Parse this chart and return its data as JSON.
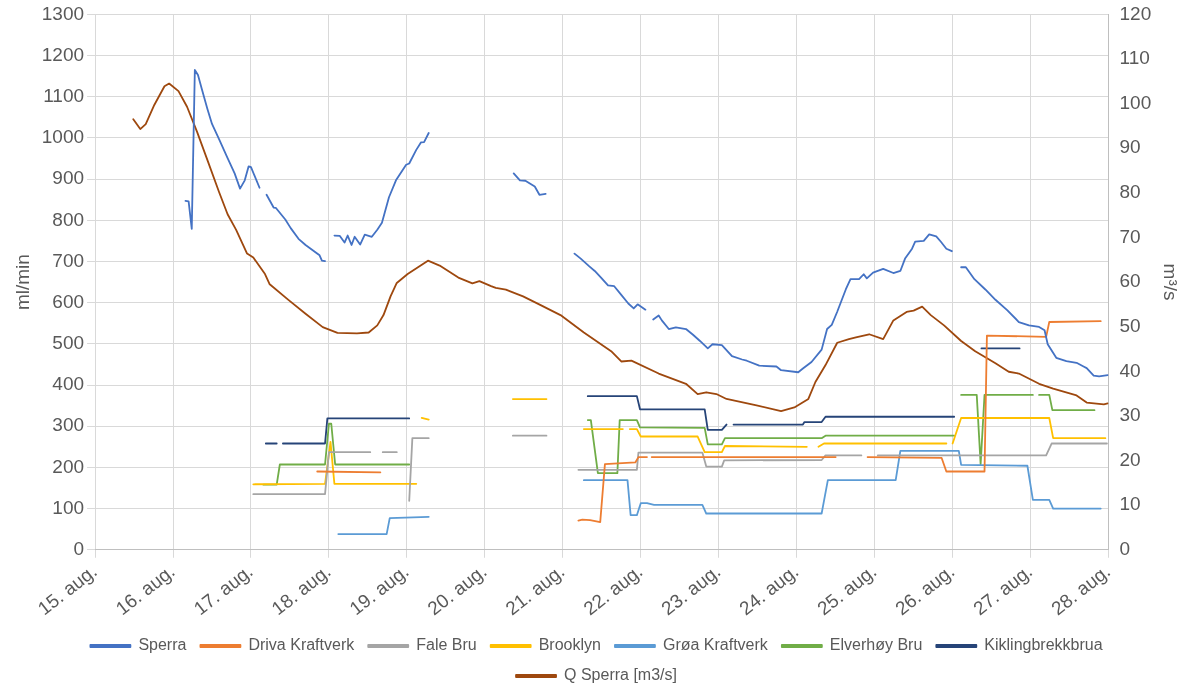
{
  "chart_data": {
    "type": "line",
    "ylabel": "ml/min",
    "y2label": "m³/s",
    "xlim": [
      "--08-15",
      "--08-28"
    ],
    "xticks": [
      {
        "value": "--08-15",
        "label": "15. aug."
      },
      {
        "value": "--08-16",
        "label": "16. aug."
      },
      {
        "value": "--08-17",
        "label": "17. aug."
      },
      {
        "value": "--08-18",
        "label": "18. aug."
      },
      {
        "value": "--08-19",
        "label": "19. aug."
      },
      {
        "value": "--08-20",
        "label": "20. aug."
      },
      {
        "value": "--08-21",
        "label": "21. aug."
      },
      {
        "value": "--08-22",
        "label": "22. aug."
      },
      {
        "value": "--08-23",
        "label": "23. aug."
      },
      {
        "value": "--08-24",
        "label": "24. aug."
      },
      {
        "value": "--08-25",
        "label": "25. aug."
      },
      {
        "value": "--08-26",
        "label": "26. aug."
      },
      {
        "value": "--08-27",
        "label": "27. aug."
      },
      {
        "value": "--08-28",
        "label": "28. aug."
      }
    ],
    "ylim": [
      0,
      1300
    ],
    "yticks": [
      0,
      100,
      200,
      300,
      400,
      500,
      600,
      700,
      800,
      900,
      1000,
      1100,
      1200,
      1300
    ],
    "y2lim": [
      0,
      120
    ],
    "y2ticks": [
      0,
      10,
      20,
      30,
      40,
      50,
      60,
      70,
      80,
      90,
      100,
      110,
      120
    ],
    "grid": true,
    "legend": "bottom",
    "marker": "none",
    "line_style": "solid",
    "series": [
      {
        "name": "Sperra",
        "color": "#4472c4",
        "x": [
          "--08-16T03:50",
          "--08-16T04:48",
          "--08-16T05:46",
          "--08-16T06:43",
          "--08-16T07:41",
          "--08-16T08:53",
          "--08-16T10:34",
          "--08-16T12:00",
          "--08-16T14:10",
          "--08-16T16:48",
          "--08-16T18:58",
          "--08-16T20:38",
          "--08-16T22:05",
          "--08-16T23:17",
          "--08-17T00:00",
          "--08-17T02:38",
          "--08-17T03:36",
          "--08-17T04:48",
          "--08-17T06:58",
          "--08-17T07:41",
          "--08-17T10:34",
          "--08-17T12:14",
          "--08-17T14:38",
          "--08-17T16:48",
          "--08-17T21:07",
          "--08-17T21:50",
          "--08-17T22:48",
          "--08-18T00:00",
          "--08-18T01:41",
          "--08-18T03:22",
          "--08-18T04:48",
          "--08-18T05:46",
          "--08-18T06:58",
          "--08-18T07:55",
          "--08-18T09:36",
          "--08-18T11:02",
          "--08-18T13:12",
          "--08-18T14:53",
          "--08-18T16:19",
          "--08-18T18:29",
          "--08-18T20:38",
          "--08-18T23:46",
          "--08-19T00:43",
          "--08-19T02:53",
          "--08-19T04:19",
          "--08-19T05:17",
          "--08-19T06:43",
          "--08-19T19:12",
          "--08-20T08:53",
          "--08-20T10:48",
          "--08-20T12:29",
          "--08-20T15:22",
          "--08-20T16:48",
          "--08-20T18:43",
          "--08-21T00:00",
          "--08-21T03:36",
          "--08-21T05:31",
          "--08-21T08:10",
          "--08-21T09:50",
          "--08-21T11:46",
          "--08-21T13:55",
          "--08-21T15:50",
          "--08-21T18:00",
          "--08-21T20:10",
          "--08-21T21:50",
          "--08-21T23:02",
          "--08-22T01:26",
          "--08-22T02:24",
          "--08-22T03:50",
          "--08-22T05:31",
          "--08-22T06:29",
          "--08-22T08:38",
          "--08-22T10:48",
          "--08-22T13:55",
          "--08-22T16:05",
          "--08-22T18:14",
          "--08-22T20:38",
          "--08-22T22:05",
          "--08-23T00:58",
          "--08-23T04:05",
          "--08-23T07:12",
          "--08-23T08:38",
          "--08-23T12:29",
          "--08-23T17:46",
          "--08-23T19:12",
          "--08-24T00:29",
          "--08-24T01:55",
          "--08-24T04:34",
          "--08-24T07:41",
          "--08-24T09:22",
          "--08-24T10:48",
          "--08-24T12:29",
          "--08-24T15:07",
          "--08-24T16:34",
          "--08-24T19:12",
          "--08-24T20:38",
          "--08-24T21:36",
          "--08-24T23:31",
          "--08-25T02:38",
          "--08-25T05:46",
          "--08-25T07:55",
          "--08-25T09:22",
          "--08-25T11:31",
          "--08-25T12:29",
          "--08-25T15:07",
          "--08-25T16:48",
          "--08-25T18:58",
          "--08-25T20:24",
          "--08-25T22:05",
          "--08-25T23:46",
          "--08-26T01:12",
          "--08-26T02:38",
          "--08-26T04:05",
          "--08-26T06:43",
          "--08-26T10:05",
          "--08-26T13:12",
          "--08-26T16:48",
          "--08-26T20:24",
          "--08-26T23:31",
          "--08-27T02:38",
          "--08-27T04:19",
          "--08-27T05:17",
          "--08-27T07:55",
          "--08-27T11:02",
          "--08-27T14:10",
          "--08-27T16:19",
          "--08-27T17:17",
          "--08-27T19:26",
          "--08-27T21:07",
          "--08-27T23:46"
        ],
        "values": [
          847,
          846,
          779,
          1165,
          1153,
          1118,
          1071,
          1034,
          997,
          951,
          914,
          877,
          897,
          931,
          929,
          879,
          null,
          862,
          831,
          830,
          802,
          781,
          755,
          740,
          715,
          702,
          701,
          null,
          763,
          762,
          746,
          763,
          740,
          760,
          741,
          765,
          760,
          777,
          794,
          856,
          897,
          935,
          938,
          971,
          989,
          990,
          1012,
          null,
          914,
          897,
          896,
          882,
          862,
          864,
          null,
          719,
          707,
          688,
          677,
          661,
          642,
          640,
          619,
          598,
          586,
          596,
          583,
          null,
          559,
          569,
          557,
          536,
          540,
          536,
          522,
          507,
          489,
          499,
          497,
          470,
          462,
          459,
          447,
          445,
          436,
          431,
          440,
          456,
          486,
          536,
          546,
          578,
          632,
          657,
          657,
          669,
          659,
          673,
          682,
          672,
          677,
          707,
          731,
          748,
          750,
          766,
          761,
          748,
          731,
          725,
          null,
          686,
          686,
          657,
          632,
          607,
          582,
          553,
          545,
          541,
          533,
          499,
          466,
          458,
          454,
          445,
          441,
          423,
          421,
          424
        ]
      },
      {
        "name": "Driva Kraftverk",
        "color": "#ed7d31",
        "x": [
          "--08-17T20:24",
          "--08-18T15:50",
          "--08-19T12:00",
          "--08-21T04:48",
          "--08-21T06:00",
          "--08-21T08:24",
          "--08-21T11:31",
          "--08-21T12:58",
          "--08-21T22:19",
          "--08-21T23:17",
          "--08-22T01:55",
          "--08-22T02:38",
          "--08-22T03:22",
          "--08-24T12:00",
          "--08-24T16:48",
          "--08-24T21:50",
          "--08-25T20:38",
          "--08-25T22:05",
          "--08-25T23:31",
          "--08-26T09:50",
          "--08-26T10:34",
          "--08-27T04:48",
          "--08-27T05:46",
          "--08-27T21:36"
        ],
        "values": [
          190,
          188,
          null,
          71,
          73,
          72,
          67,
          208,
          212,
          225,
          225,
          null,
          225,
          225,
          null,
          225,
          223,
          190,
          190,
          190,
          520,
          517,
          553,
          555
        ]
      },
      {
        "name": "Fale Bru",
        "color": "#a5a5a5",
        "x": [
          "--08-17T00:43",
          "--08-17T22:48",
          "--08-18T00:00",
          "--08-18T12:43",
          "--08-18T14:24",
          "--08-18T16:34",
          "--08-18T20:53",
          "--08-18T22:48",
          "--08-19T00:43",
          "--08-19T01:41",
          "--08-19T06:43",
          "--08-19T19:12",
          "--08-20T08:38",
          "--08-20T18:58",
          "--08-21T00:00",
          "--08-21T04:48",
          "--08-21T22:48",
          "--08-21T23:17",
          "--08-22T18:58",
          "--08-22T20:10",
          "--08-23T00:58",
          "--08-23T01:41",
          "--08-24T07:41",
          "--08-24T08:53",
          "--08-24T19:55",
          "--08-24T21:36",
          "--08-25T00:58",
          "--08-27T04:48",
          "--08-27T06:29",
          "--08-27T23:31"
        ],
        "values": [
          135,
          135,
          237,
          237,
          null,
          237,
          237,
          null,
          119,
          271,
          271,
          null,
          277,
          277,
          null,
          194,
          194,
          236,
          236,
          202,
          202,
          217,
          218,
          229,
          229,
          null,
          229,
          229,
          258,
          258
        ]
      },
      {
        "name": "Brooklyn",
        "color": "#ffc000",
        "x": [
          "--08-17T00:43",
          "--08-17T22:48",
          "--08-18T00:29",
          "--08-18T01:41",
          "--08-19T02:53",
          "--08-19T03:36",
          "--08-19T04:34",
          "--08-19T06:43",
          "--08-19T19:12",
          "--08-20T08:38",
          "--08-20T18:58",
          "--08-21T00:00",
          "--08-21T06:29",
          "--08-21T18:29",
          "--08-21T19:12",
          "--08-21T20:38",
          "--08-21T22:48",
          "--08-22T00:00",
          "--08-22T17:31",
          "--08-22T19:41",
          "--08-23T00:58",
          "--08-23T01:55",
          "--08-24T03:07",
          "--08-24T04:48",
          "--08-24T06:43",
          "--08-24T08:24",
          "--08-25T22:05",
          "--08-25T23:02",
          "--08-26T00:00",
          "--08-26T02:38",
          "--08-27T05:46",
          "--08-27T06:58",
          "--08-27T23:02"
        ],
        "values": [
          159,
          160,
          262,
          160,
          160,
          null,
          320,
          316,
          null,
          366,
          366,
          null,
          293,
          293,
          null,
          293,
          293,
          275,
          275,
          237,
          237,
          252,
          250,
          null,
          250,
          258,
          258,
          null,
          258,
          320,
          320,
          271,
          271
        ]
      },
      {
        "name": "Grøa Kraftverk",
        "color": "#5b9bd5",
        "x": [
          "--08-18T02:53",
          "--08-18T17:46",
          "--08-18T18:43",
          "--08-19T06:43",
          "--08-19T19:12",
          "--08-21T06:29",
          "--08-21T19:55",
          "--08-21T20:53",
          "--08-21T22:48",
          "--08-22T00:00",
          "--08-22T01:55",
          "--08-22T04:05",
          "--08-22T18:58",
          "--08-22T20:10",
          "--08-24T07:41",
          "--08-24T09:36",
          "--08-25T06:29",
          "--08-25T07:55",
          "--08-26T01:55",
          "--08-26T02:38",
          "--08-26T23:02",
          "--08-27T00:43",
          "--08-27T05:46",
          "--08-27T06:58",
          "--08-27T21:36"
        ],
        "values": [
          38,
          38,
          77,
          80,
          null,
          169,
          169,
          84,
          84,
          113,
          113,
          109,
          109,
          88,
          88,
          169,
          169,
          240,
          240,
          206,
          204,
          121,
          121,
          100,
          100
        ]
      },
      {
        "name": "Elverhøy Bru",
        "color": "#70ad47",
        "x": [
          "--08-17T03:50",
          "--08-17T07:55",
          "--08-17T08:53",
          "--08-17T22:48",
          "--08-18T00:00",
          "--08-18T00:43",
          "--08-18T01:55",
          "--08-19T00:43",
          "--08-19T19:12",
          "--08-21T07:41",
          "--08-21T08:38",
          "--08-21T10:48",
          "--08-21T16:48",
          "--08-21T17:31",
          "--08-21T22:48",
          "--08-21T23:46",
          "--08-22T19:41",
          "--08-22T20:38",
          "--08-23T00:58",
          "--08-23T01:55",
          "--08-24T07:41",
          "--08-24T08:53",
          "--08-26T00:29",
          "--08-26T01:26",
          "--08-26T02:38",
          "--08-26T07:26",
          "--08-26T08:38",
          "--08-26T09:50",
          "--08-27T00:43",
          "--08-27T01:41",
          "--08-27T02:38",
          "--08-27T05:46",
          "--08-27T06:43",
          "--08-27T19:41"
        ],
        "values": [
          158,
          158,
          207,
          207,
          306,
          306,
          207,
          207,
          null,
          315,
          315,
          186,
          186,
          315,
          315,
          297,
          296,
          256,
          256,
          271,
          271,
          277,
          277,
          null,
          376,
          376,
          208,
          376,
          376,
          null,
          376,
          376,
          339,
          339
        ]
      },
      {
        "name": "Kiklingbrekkbrua",
        "color": "#264478",
        "x": [
          "--08-17T04:34",
          "--08-17T07:55",
          "--08-17T08:53",
          "--08-17T09:50",
          "--08-17T22:48",
          "--08-17T23:31",
          "--08-19T00:43",
          "--08-19T19:12",
          "--08-21T07:41",
          "--08-21T22:48",
          "--08-21T23:46",
          "--08-22T19:41",
          "--08-22T20:38",
          "--08-23T00:58",
          "--08-23T02:24",
          "--08-23T03:36",
          "--08-23T04:34",
          "--08-24T01:55",
          "--08-24T02:24",
          "--08-24T07:41",
          "--08-24T08:53",
          "--08-26T00:29",
          "--08-26T04:48",
          "--08-26T08:53",
          "--08-26T20:38"
        ],
        "values": [
          258,
          258,
          null,
          258,
          258,
          319,
          319,
          null,
          373,
          373,
          341,
          341,
          291,
          291,
          304,
          null,
          304,
          304,
          310,
          310,
          323,
          323,
          null,
          489,
          489
        ]
      },
      {
        "name": "Q Sperra [m3/s]",
        "color": "#9e480e",
        "axis": "y2",
        "x": [
          "--08-15T11:46",
          "--08-15T13:55",
          "--08-15T15:36",
          "--08-15T18:14",
          "--08-15T21:22",
          "--08-15T22:48",
          "--08-16T01:41",
          "--08-16T04:19",
          "--08-16T07:26",
          "--08-16T10:34",
          "--08-16T14:10",
          "--08-16T16:48",
          "--08-16T19:26",
          "--08-16T22:48",
          "--08-17T00:43",
          "--08-17T04:19",
          "--08-17T05:46",
          "--08-17T11:31",
          "--08-17T16:48",
          "--08-17T22:05",
          "--08-18T02:38",
          "--08-18T08:38",
          "--08-18T12:14",
          "--08-18T14:53",
          "--08-18T16:48",
          "--08-18T18:58",
          "--08-18T20:53",
          "--08-19T00:14",
          "--08-19T06:29",
          "--08-19T10:05",
          "--08-19T15:50",
          "--08-19T20:10",
          "--08-19T22:19",
          "--08-20T01:55",
          "--08-20T03:22",
          "--08-20T06:29",
          "--08-20T11:46",
          "--08-20T17:02",
          "--08-20T23:17",
          "--08-21T06:29",
          "--08-21T14:53",
          "--08-21T18:00",
          "--08-21T21:07",
          "--08-22T05:31",
          "--08-22T13:55",
          "--08-22T17:31",
          "--08-22T20:10",
          "--08-22T23:17",
          "--08-23T02:24",
          "--08-23T12:00",
          "--08-23T19:12",
          "--08-23T23:17",
          "--08-24T03:36",
          "--08-24T05:46",
          "--08-24T08:53",
          "--08-24T12:29",
          "--08-24T16:05",
          "--08-24T18:14",
          "--08-24T22:19",
          "--08-25T02:38",
          "--08-25T05:46",
          "--08-25T09:50",
          "--08-25T12:00",
          "--08-25T14:38",
          "--08-25T17:17",
          "--08-25T21:22",
          "--08-26T02:38",
          "--08-26T06:58",
          "--08-26T13:12",
          "--08-26T17:17",
          "--08-26T20:24",
          "--08-27T02:38",
          "--08-27T06:58",
          "--08-27T14:10",
          "--08-27T17:17",
          "--08-27T22:34",
          "--08-27T23:46"
        ],
        "values": [
          96.5,
          94.3,
          95.4,
          99.7,
          103.9,
          104.5,
          102.8,
          99.3,
          93.6,
          87.4,
          80.2,
          75.2,
          71.7,
          66.4,
          65.5,
          61.8,
          59.5,
          56.0,
          52.9,
          49.9,
          48.6,
          48.5,
          48.7,
          50.3,
          52.6,
          56.8,
          59.8,
          61.8,
          64.8,
          63.7,
          61.0,
          59.7,
          60.2,
          59.1,
          58.7,
          58.3,
          56.8,
          54.9,
          52.6,
          48.7,
          44.5,
          42.2,
          42.4,
          39.5,
          37.2,
          34.9,
          35.3,
          34.9,
          33.8,
          32.3,
          31.1,
          31.9,
          33.8,
          37.6,
          41.4,
          46.4,
          47.2,
          47.6,
          48.3,
          47.2,
          51.4,
          53.3,
          53.6,
          54.5,
          52.6,
          50.3,
          46.8,
          44.5,
          41.8,
          39.9,
          39.5,
          37.2,
          36.1,
          34.6,
          33.0,
          32.6,
          32.8
        ]
      }
    ]
  }
}
